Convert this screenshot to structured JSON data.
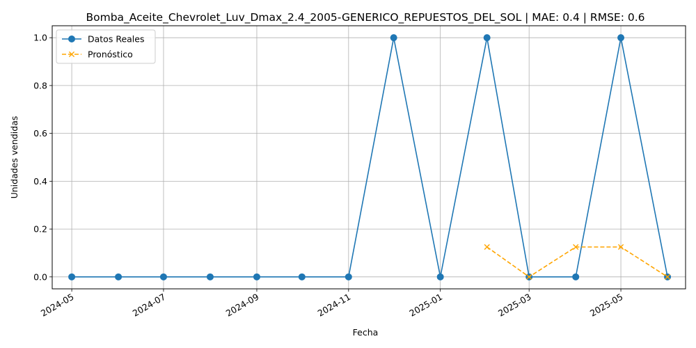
{
  "chart_data": {
    "type": "line",
    "title": "Bomba_Aceite_Chevrolet_Luv_Dmax_2.4_2005-GENERICO_REPUESTOS_DEL_SOL | MAE: 0.4 | RMSE: 0.6",
    "xlabel": "Fecha",
    "ylabel": "Unidades vendidas",
    "x_ticks": [
      "2024-05",
      "2024-07",
      "2024-09",
      "2024-11",
      "2025-01",
      "2025-03",
      "2025-05"
    ],
    "y_ticks": [
      "0.0",
      "0.2",
      "0.4",
      "0.6",
      "0.8",
      "1.0"
    ],
    "ylim": [
      -0.05,
      1.05
    ],
    "xlim": [
      "2024-04-18",
      "2025-06-13"
    ],
    "grid": true,
    "legend_position": "top-left",
    "series": [
      {
        "name": "Datos Reales",
        "color": "#1f77b4",
        "style": "solid",
        "marker": "circle",
        "x": [
          "2024-05-01",
          "2024-06-01",
          "2024-07-01",
          "2024-08-01",
          "2024-09-01",
          "2024-10-01",
          "2024-11-01",
          "2024-12-01",
          "2025-01-01",
          "2025-02-01",
          "2025-03-01",
          "2025-04-01",
          "2025-05-01",
          "2025-06-01"
        ],
        "values": [
          0,
          0,
          0,
          0,
          0,
          0,
          0,
          1,
          0,
          1,
          0,
          0,
          1,
          0
        ]
      },
      {
        "name": "Pronóstico",
        "color": "#ffa500",
        "style": "dashed",
        "marker": "x",
        "x": [
          "2025-02-01",
          "2025-03-01",
          "2025-04-01",
          "2025-05-01",
          "2025-06-01"
        ],
        "values": [
          0.125,
          0,
          0.125,
          0.125,
          0
        ]
      }
    ]
  }
}
